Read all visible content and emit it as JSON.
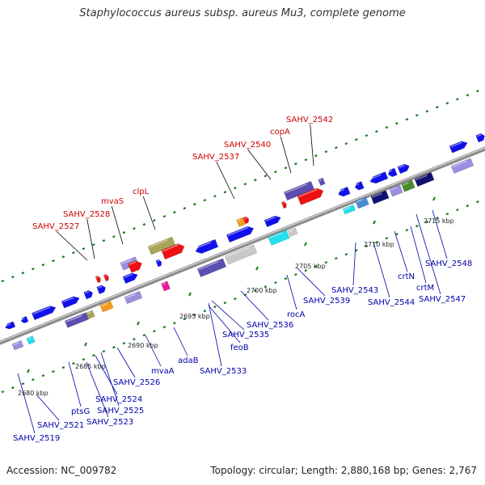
{
  "header": {
    "title": "Staphylococcus aureus subsp. aureus Mu3, complete genome"
  },
  "footer": {
    "accession": "Accession: NC_009782",
    "topology": "Topology: circular; Length: 2,880,168 bp; Genes: 2,767"
  },
  "colors": {
    "backbone": "#8a8a8a",
    "track_dots": "#1a7a1a",
    "gene_blue": "#1010ee",
    "gene_red": "#ee1111",
    "gene_purple": "#5a4fb0",
    "gene_lavender": "#9a8fe0",
    "gene_cyan": "#22e0ee",
    "gene_olive": "#a9a35a",
    "gene_orange": "#f59a1a",
    "gene_magenta": "#ee1a9a",
    "gene_gray": "#c8c8c8",
    "label_red": "#cc0000",
    "label_blue": "#0000aa"
  },
  "ticks": [
    "2680 kbp",
    "2685 kbp",
    "2690 kbp",
    "2695 kbp",
    "2700 kbp",
    "2705 kbp",
    "2710 kbp",
    "2715 kbp"
  ],
  "labels_top": [
    "SAHV_2527",
    "SAHV_2528",
    "mvaS",
    "clpL",
    "SAHV_2537",
    "SAHV_2540",
    "copA",
    "SAHV_2542"
  ],
  "labels_bottom": [
    "SAHV_2519",
    "SAHV_2521",
    "ptsG",
    "SAHV_2523",
    "SAHV_2524",
    "SAHV_2525",
    "SAHV_2526",
    "mvaA",
    "adaB",
    "SAHV_2533",
    "feoB",
    "SAHV_2535",
    "SAHV_2536",
    "rocA",
    "SAHV_2539",
    "SAHV_2543",
    "SAHV_2544",
    "crtN",
    "crtM",
    "SAHV_2547",
    "SAHV_2548"
  ]
}
